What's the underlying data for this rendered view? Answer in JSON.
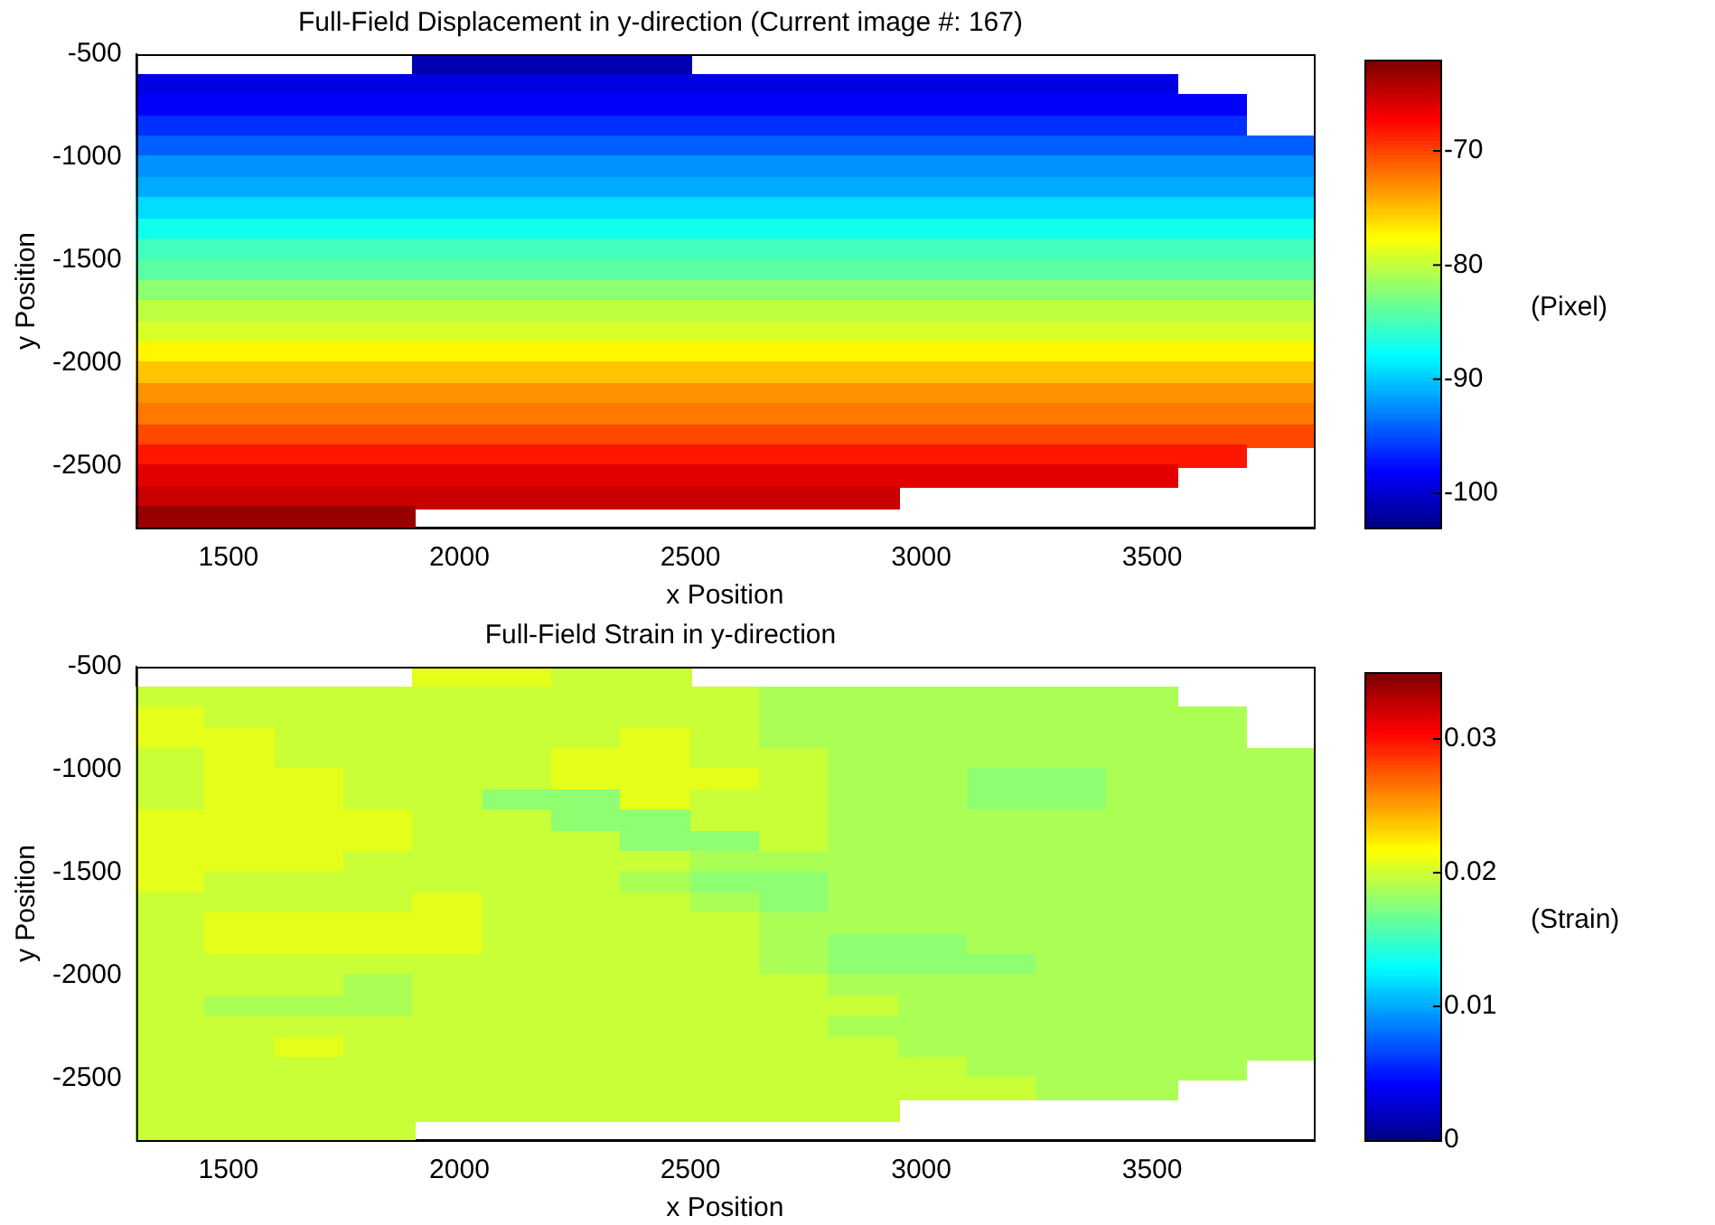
{
  "chart_data": [
    {
      "type": "heatmap",
      "title": "Full-Field Displacement in y-direction (Current image #: 167)",
      "xlabel": "x Position",
      "ylabel": "y Position",
      "clabel": "(Pixel)",
      "xlim": [
        1300,
        3850
      ],
      "ylim": [
        -2800,
        -500
      ],
      "xticks": [
        1500,
        2000,
        2500,
        3000,
        3500
      ],
      "yticks": [
        -2500,
        -2000,
        -1500,
        -1000,
        -500
      ],
      "clim": [
        -103,
        -62
      ],
      "cticks": [
        -100,
        -90,
        -80,
        -70
      ],
      "cells": [
        [
          null,
          null,
          null,
          null,
          -101,
          -101,
          -101,
          -101,
          null,
          null,
          null,
          null,
          null,
          null,
          null,
          null,
          null
        ],
        [
          -99,
          -99,
          -99,
          -99,
          -99,
          -99,
          -99,
          -99,
          -99,
          -99,
          -99,
          -99,
          -99,
          -99,
          -99,
          null,
          null
        ],
        [
          -98,
          -98,
          -98,
          -98,
          -98,
          -98,
          -98,
          -98,
          -98,
          -98,
          -98,
          -98,
          -98,
          -98,
          -98,
          -98,
          null
        ],
        [
          -96,
          -96,
          -96,
          -96,
          -96,
          -96,
          -96,
          -96,
          -96,
          -96,
          -96,
          -96,
          -96,
          -96,
          -96,
          -96,
          null
        ],
        [
          -94,
          -94,
          -94,
          -94,
          -94,
          -94,
          -94,
          -94,
          -94,
          -94,
          -94,
          -94,
          -94,
          -94,
          -94,
          -94,
          -94
        ],
        [
          -92,
          -92,
          -92,
          -92,
          -92,
          -92,
          -92,
          -92,
          -92,
          -92,
          -92,
          -92,
          -92,
          -92,
          -92,
          -92,
          -92
        ],
        [
          -91,
          -91,
          -91,
          -91,
          -91,
          -91,
          -91,
          -91,
          -91,
          -91,
          -91,
          -91,
          -91,
          -91,
          -91,
          -91,
          -91
        ],
        [
          -89,
          -89,
          -89,
          -89,
          -89,
          -89,
          -89,
          -89,
          -89,
          -89,
          -89,
          -89,
          -89,
          -89,
          -89,
          -89,
          -89
        ],
        [
          -87,
          -87,
          -87,
          -87,
          -87,
          -87,
          -87,
          -87,
          -87,
          -87,
          -87,
          -87,
          -87,
          -87,
          -87,
          -87,
          -87
        ],
        [
          -85,
          -85,
          -85,
          -85,
          -85,
          -85,
          -85,
          -85,
          -85,
          -85,
          -85,
          -85,
          -85,
          -85,
          -85,
          -85,
          -85
        ],
        [
          -84,
          -84,
          -84,
          -84,
          -84,
          -84,
          -84,
          -84,
          -84,
          -84,
          -84,
          -84,
          -84,
          -84,
          -84,
          -84,
          -84
        ],
        [
          -82,
          -82,
          -82,
          -82,
          -82,
          -82,
          -82,
          -82,
          -82,
          -82,
          -82,
          -82,
          -82,
          -82,
          -82,
          -82,
          -82
        ],
        [
          -80,
          -80,
          -80,
          -80,
          -80,
          -80,
          -80,
          -80,
          -80,
          -80,
          -80,
          -80,
          -80,
          -80,
          -80,
          -80,
          -80
        ],
        [
          -79,
          -79,
          -79,
          -79,
          -79,
          -79,
          -79,
          -79,
          -79,
          -79,
          -79,
          -79,
          -79,
          -79,
          -79,
          -79,
          -79
        ],
        [
          -77,
          -77,
          -77,
          -77,
          -77,
          -77,
          -77,
          -77,
          -77,
          -77,
          -77,
          -77,
          -77,
          -77,
          -77,
          -77,
          -77
        ],
        [
          -75,
          -75,
          -75,
          -75,
          -75,
          -75,
          -75,
          -75,
          -75,
          -75,
          -75,
          -75,
          -75,
          -75,
          -75,
          -75,
          -75
        ],
        [
          -73,
          -73,
          -73,
          -73,
          -73,
          -73,
          -73,
          -73,
          -73,
          -73,
          -73,
          -73,
          -73,
          -73,
          -73,
          -73,
          -73
        ],
        [
          -72,
          -72,
          -72,
          -72,
          -72,
          -72,
          -72,
          -72,
          -72,
          -72,
          -72,
          -72,
          -72,
          -72,
          -72,
          -72,
          -72
        ],
        [
          -70,
          -70,
          -70,
          -70,
          -70,
          -70,
          -70,
          -70,
          -70,
          -70,
          -70,
          -70,
          -70,
          -70,
          -70,
          -70,
          -70
        ],
        [
          -68,
          -68,
          -68,
          -68,
          -68,
          -68,
          -68,
          -68,
          -68,
          -68,
          -68,
          -68,
          -68,
          -68,
          -68,
          -68,
          null
        ],
        [
          -66,
          -66,
          -66,
          -66,
          -66,
          -66,
          -66,
          -66,
          -66,
          -66,
          -66,
          -66,
          -66,
          -66,
          -66,
          null,
          null
        ],
        [
          -65,
          -65,
          -65,
          -65,
          -65,
          -65,
          -65,
          -65,
          -65,
          -65,
          -65,
          null,
          null,
          null,
          null,
          null,
          null
        ],
        [
          -63,
          -63,
          -63,
          -63,
          null,
          null,
          null,
          null,
          null,
          null,
          null,
          null,
          null,
          null,
          null,
          null,
          null
        ]
      ]
    },
    {
      "type": "heatmap",
      "title": "Full-Field Strain in y-direction",
      "xlabel": "x Position",
      "ylabel": "y Position",
      "clabel": "(Strain)",
      "xlim": [
        1300,
        3850
      ],
      "ylim": [
        -2800,
        -500
      ],
      "xticks": [
        1500,
        2000,
        2500,
        3000,
        3500
      ],
      "yticks": [
        -2500,
        -2000,
        -1500,
        -1000,
        -500
      ],
      "clim": [
        0,
        0.035
      ],
      "cticks": [
        0,
        0.01,
        0.02,
        0.03
      ],
      "cells": [
        [
          null,
          null,
          null,
          null,
          0.021,
          0.021,
          0.02,
          0.02,
          null,
          null,
          null,
          null,
          null,
          null,
          null,
          null,
          null
        ],
        [
          0.02,
          0.02,
          0.02,
          0.02,
          0.02,
          0.02,
          0.02,
          0.02,
          0.02,
          0.019,
          0.019,
          0.019,
          0.019,
          0.019,
          0.019,
          null,
          null
        ],
        [
          0.021,
          0.02,
          0.02,
          0.02,
          0.02,
          0.02,
          0.02,
          0.02,
          0.02,
          0.019,
          0.019,
          0.019,
          0.019,
          0.019,
          0.019,
          0.019,
          null
        ],
        [
          0.021,
          0.021,
          0.02,
          0.02,
          0.02,
          0.02,
          0.02,
          0.021,
          0.02,
          0.019,
          0.019,
          0.019,
          0.019,
          0.019,
          0.019,
          0.019,
          null
        ],
        [
          0.02,
          0.021,
          0.02,
          0.02,
          0.02,
          0.02,
          0.021,
          0.021,
          0.02,
          0.02,
          0.019,
          0.019,
          0.019,
          0.019,
          0.019,
          0.019,
          0.019
        ],
        [
          0.02,
          0.021,
          0.021,
          0.02,
          0.02,
          0.02,
          0.021,
          0.021,
          0.021,
          0.02,
          0.019,
          0.019,
          0.018,
          0.018,
          0.019,
          0.019,
          0.019
        ],
        [
          0.02,
          0.021,
          0.021,
          0.02,
          0.02,
          0.018,
          0.018,
          0.021,
          0.02,
          0.02,
          0.019,
          0.019,
          0.018,
          0.018,
          0.019,
          0.019,
          0.019
        ],
        [
          0.021,
          0.021,
          0.021,
          0.021,
          0.02,
          0.02,
          0.018,
          0.018,
          0.02,
          0.02,
          0.019,
          0.019,
          0.019,
          0.019,
          0.019,
          0.019,
          0.019
        ],
        [
          0.021,
          0.021,
          0.021,
          0.021,
          0.02,
          0.02,
          0.02,
          0.018,
          0.018,
          0.02,
          0.019,
          0.019,
          0.019,
          0.019,
          0.019,
          0.019,
          0.019
        ],
        [
          0.021,
          0.021,
          0.021,
          0.02,
          0.02,
          0.02,
          0.02,
          0.02,
          0.019,
          0.019,
          0.019,
          0.019,
          0.019,
          0.019,
          0.019,
          0.019,
          0.019
        ],
        [
          0.021,
          0.02,
          0.02,
          0.02,
          0.02,
          0.02,
          0.02,
          0.019,
          0.018,
          0.018,
          0.019,
          0.019,
          0.019,
          0.019,
          0.019,
          0.019,
          0.019
        ],
        [
          0.02,
          0.02,
          0.02,
          0.02,
          0.021,
          0.02,
          0.02,
          0.02,
          0.019,
          0.018,
          0.019,
          0.019,
          0.019,
          0.019,
          0.019,
          0.019,
          0.019
        ],
        [
          0.02,
          0.021,
          0.021,
          0.021,
          0.021,
          0.02,
          0.02,
          0.02,
          0.02,
          0.019,
          0.019,
          0.019,
          0.019,
          0.019,
          0.019,
          0.019,
          0.019
        ],
        [
          0.02,
          0.021,
          0.021,
          0.021,
          0.021,
          0.02,
          0.02,
          0.02,
          0.02,
          0.019,
          0.018,
          0.018,
          0.019,
          0.019,
          0.019,
          0.019,
          0.019
        ],
        [
          0.02,
          0.02,
          0.02,
          0.02,
          0.02,
          0.02,
          0.02,
          0.02,
          0.02,
          0.019,
          0.018,
          0.018,
          0.018,
          0.019,
          0.019,
          0.019,
          0.019
        ],
        [
          0.02,
          0.02,
          0.02,
          0.019,
          0.02,
          0.02,
          0.02,
          0.02,
          0.02,
          0.02,
          0.019,
          0.019,
          0.019,
          0.019,
          0.019,
          0.019,
          0.019
        ],
        [
          0.02,
          0.019,
          0.019,
          0.019,
          0.02,
          0.02,
          0.02,
          0.02,
          0.02,
          0.02,
          0.02,
          0.019,
          0.019,
          0.019,
          0.019,
          0.019,
          0.019
        ],
        [
          0.02,
          0.02,
          0.02,
          0.02,
          0.02,
          0.02,
          0.02,
          0.02,
          0.02,
          0.02,
          0.019,
          0.019,
          0.019,
          0.019,
          0.019,
          0.019,
          0.019
        ],
        [
          0.02,
          0.02,
          0.021,
          0.02,
          0.02,
          0.02,
          0.02,
          0.02,
          0.02,
          0.02,
          0.02,
          0.019,
          0.019,
          0.019,
          0.019,
          0.019,
          0.019
        ],
        [
          0.02,
          0.02,
          0.02,
          0.02,
          0.02,
          0.02,
          0.02,
          0.02,
          0.02,
          0.02,
          0.02,
          0.02,
          0.019,
          0.019,
          0.019,
          0.019,
          null
        ],
        [
          0.02,
          0.02,
          0.02,
          0.02,
          0.02,
          0.02,
          0.02,
          0.02,
          0.02,
          0.02,
          0.02,
          0.02,
          0.02,
          0.019,
          0.019,
          null,
          null
        ],
        [
          0.02,
          0.02,
          0.02,
          0.02,
          0.02,
          0.02,
          0.02,
          0.02,
          0.02,
          0.02,
          0.02,
          null,
          null,
          null,
          null,
          null,
          null
        ],
        [
          0.02,
          0.02,
          0.02,
          0.02,
          null,
          null,
          null,
          null,
          null,
          null,
          null,
          null,
          null,
          null,
          null,
          null,
          null
        ]
      ]
    }
  ]
}
